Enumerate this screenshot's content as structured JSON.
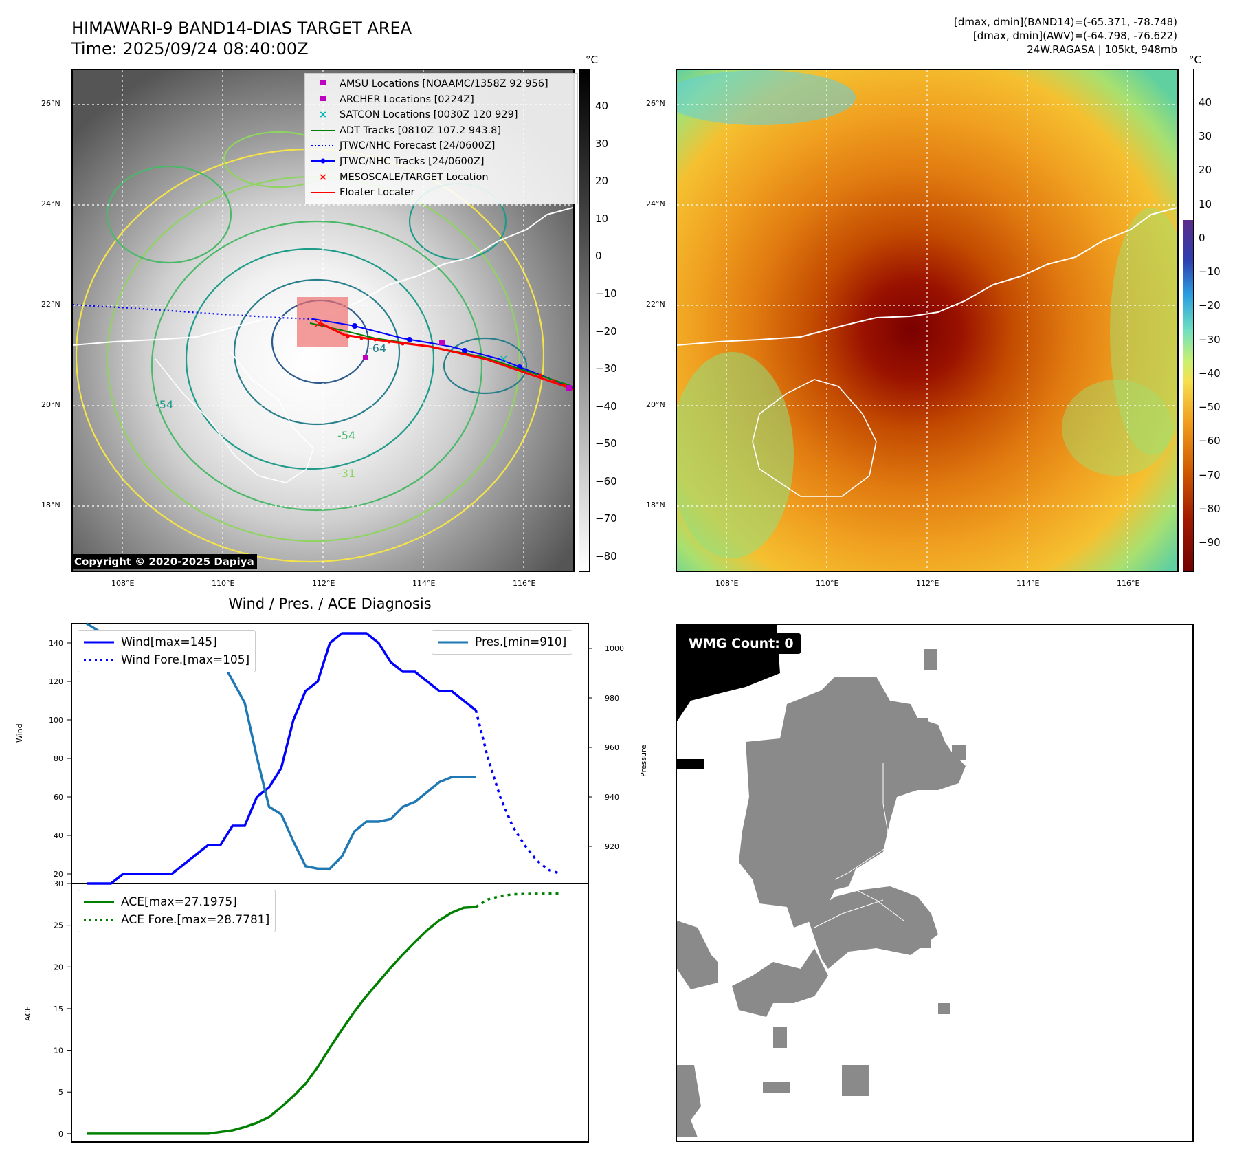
{
  "header": {
    "title_line1": "HIMAWARI-9 BAND14-DIAS TARGET AREA",
    "title_line2": "Time: 2025/09/24 08:40:00Z",
    "right_line1": "[dmax, dmin](BAND14)=(-65.371, -78.748)",
    "right_line2": "[dmax, dmin](AWV)=(-64.798, -76.622)",
    "right_line3": "24W.RAGASA | 105kt, 948mb"
  },
  "map": {
    "lon_ticks": [
      "108°E",
      "110°E",
      "112°E",
      "114°E",
      "116°E"
    ],
    "lat_ticks": [
      "26°N",
      "24°N",
      "22°N",
      "20°N",
      "18°N"
    ],
    "contour_labels": [
      "-54",
      "-64",
      "-54",
      "-31"
    ],
    "copyright": "Copyright © 2020-2025 Dapiya",
    "legend": [
      {
        "label": "AMSU Locations [NOAAMC/1358Z 92 956]",
        "color": "#c000c0",
        "symbol": "square"
      },
      {
        "label": "ARCHER Locations [0224Z]",
        "color": "#c000c0",
        "symbol": "square"
      },
      {
        "label": "SATCON Locations [0030Z 120 929]",
        "color": "#00b5b5",
        "symbol": "x"
      },
      {
        "label": "ADT Tracks [0810Z 107.2 943.8]",
        "color": "#008000",
        "symbol": "line"
      },
      {
        "label": "JTWC/NHC Forecast [24/0600Z]",
        "color": "#0000ff",
        "symbol": "dotted"
      },
      {
        "label": "JTWC/NHC Tracks [24/0600Z]",
        "color": "#0000ff",
        "symbol": "line-dot"
      },
      {
        "label": "MESOSCALE/TARGET Location",
        "color": "#ff0000",
        "symbol": "x"
      },
      {
        "label": "Floater Locater",
        "color": "#ff0000",
        "symbol": "line"
      }
    ]
  },
  "colorbar_gray": {
    "unit": "°C",
    "ticks": [
      "40",
      "30",
      "20",
      "10",
      "0",
      "−10",
      "−20",
      "−30",
      "−40",
      "−50",
      "−60",
      "−70",
      "−80"
    ]
  },
  "colorbar_color": {
    "unit": "°C",
    "ticks": [
      "40",
      "30",
      "20",
      "10",
      "0",
      "−10",
      "−20",
      "−30",
      "−40",
      "−50",
      "−60",
      "−70",
      "−80",
      "−90"
    ]
  },
  "wmg": {
    "count_label": "WMG Count: 0"
  },
  "chart_data": [
    {
      "type": "line",
      "title": "Wind / Pres. / ACE Diagnosis",
      "ylabel": "Wind",
      "ylabel_right": "Pressure",
      "ylim": [
        15,
        150
      ],
      "ylim_right": [
        905,
        1010
      ],
      "yticks": [
        20,
        40,
        60,
        80,
        100,
        120,
        140
      ],
      "yticks_right": [
        920,
        940,
        960,
        980,
        1000
      ],
      "legend_placement": "upper-left and upper-right",
      "series": [
        {
          "name": "Wind[max=145]",
          "color": "#0000ff",
          "style": "solid",
          "axis": "left",
          "x": [
            0,
            1,
            2,
            3,
            4,
            5,
            6,
            7,
            8,
            9,
            10,
            11,
            12,
            13,
            14,
            15,
            16,
            17,
            18,
            19,
            20,
            21,
            22,
            23,
            24,
            25,
            26,
            27,
            28,
            29,
            30
          ],
          "y": [
            15,
            15,
            15,
            20,
            20,
            20,
            20,
            20,
            25,
            30,
            35,
            35,
            45,
            45,
            60,
            65,
            75,
            100,
            115,
            120,
            140,
            145,
            145,
            145,
            140,
            130,
            125,
            125,
            120,
            115,
            115
          ]
        },
        {
          "name": "",
          "color": "#0000ff",
          "style": "solid",
          "axis": "left",
          "x": [
            30,
            31,
            32
          ],
          "y": [
            115,
            110,
            105
          ]
        },
        {
          "name": "Wind Fore.[max=105]",
          "color": "#0000ff",
          "style": "dotted",
          "axis": "left",
          "x": [
            32,
            33,
            34,
            35,
            36,
            37,
            38,
            39
          ],
          "y": [
            105,
            80,
            60,
            45,
            35,
            27,
            22,
            20
          ]
        },
        {
          "name": "Pres.[min=910]",
          "color": "#1f77b4",
          "style": "solid",
          "axis": "right",
          "x": [
            0,
            1,
            2,
            3,
            4,
            5,
            6,
            7,
            8,
            9,
            10,
            11,
            12,
            13,
            14,
            15,
            16,
            17,
            18,
            19,
            20,
            21,
            22,
            23,
            24,
            25,
            26,
            27,
            28,
            29,
            30,
            31,
            32
          ],
          "y": [
            1010,
            1007,
            1007,
            1007,
            1007,
            1007,
            1006,
            1005,
            1003,
            1002,
            1000,
            996,
            987,
            978,
            956,
            936,
            933,
            922,
            912,
            911,
            911,
            916,
            926,
            930,
            930,
            931,
            936,
            938,
            942,
            946,
            948,
            948,
            948
          ]
        }
      ]
    },
    {
      "type": "line",
      "ylabel": "ACE",
      "ylim": [
        -1,
        30
      ],
      "yticks": [
        0,
        5,
        10,
        15,
        20,
        25,
        30
      ],
      "legend_placement": "upper-left",
      "series": [
        {
          "name": "ACE[max=27.1975]",
          "color": "#008000",
          "style": "solid",
          "x": [
            0,
            2,
            4,
            6,
            8,
            10,
            11,
            12,
            13,
            14,
            15,
            16,
            17,
            18,
            19,
            20,
            21,
            22,
            23,
            24,
            25,
            26,
            27,
            28,
            29,
            30,
            31,
            32
          ],
          "y": [
            0,
            0,
            0,
            0,
            0,
            0,
            0.2,
            0.4,
            0.8,
            1.3,
            2.0,
            3.2,
            4.5,
            6.0,
            8.0,
            10.3,
            12.5,
            14.6,
            16.5,
            18.2,
            19.9,
            21.5,
            23.0,
            24.4,
            25.6,
            26.5,
            27.1,
            27.2
          ]
        },
        {
          "name": "ACE Fore.[max=28.7781]",
          "color": "#008000",
          "style": "dotted",
          "x": [
            32,
            33,
            34,
            35,
            36,
            37,
            38,
            39
          ],
          "y": [
            27.2,
            28.1,
            28.5,
            28.7,
            28.75,
            28.77,
            28.78,
            28.78
          ]
        }
      ]
    }
  ]
}
